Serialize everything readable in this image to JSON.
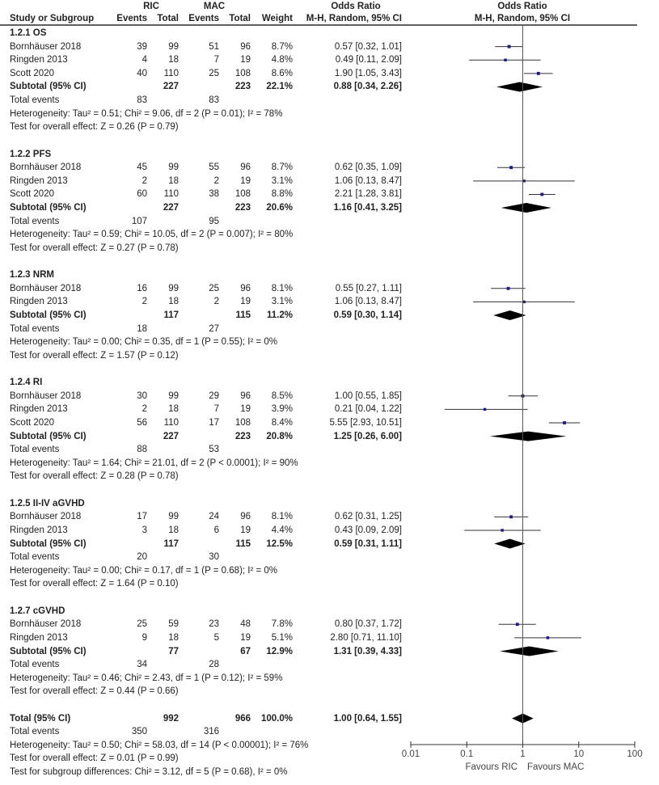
{
  "chart_data": {
    "type": "forest",
    "header": {
      "group1": "RIC",
      "group2": "MAC",
      "or_col": "Odds Ratio",
      "plot_col": "Odds Ratio",
      "study": "Study or Subgroup",
      "events": "Events",
      "total": "Total",
      "weight": "Weight",
      "method": "M-H, Random, 95% CI"
    },
    "x_axis": {
      "scale": "log",
      "range": [
        0.01,
        100
      ],
      "ticks": [
        "0.01",
        "0.1",
        "1",
        "10",
        "100"
      ],
      "label_left": "Favours RIC",
      "label_right": "Favours MAC"
    },
    "subgroups": [
      {
        "title": "1.2.1 OS",
        "studies": [
          {
            "name": "Bornhäuser 2018",
            "e1": "39",
            "n1": "99",
            "e2": "51",
            "n2": "96",
            "weight": "8.7%",
            "or": 0.57,
            "lo": 0.32,
            "hi": 1.01,
            "label": "0.57 [0.32, 1.01]"
          },
          {
            "name": "Ringden 2013",
            "e1": "4",
            "n1": "18",
            "e2": "7",
            "n2": "19",
            "weight": "4.8%",
            "or": 0.49,
            "lo": 0.11,
            "hi": 2.09,
            "label": "0.49 [0.11, 2.09]"
          },
          {
            "name": "Scott 2020",
            "e1": "40",
            "n1": "110",
            "e2": "25",
            "n2": "108",
            "weight": "8.6%",
            "or": 1.9,
            "lo": 1.05,
            "hi": 3.43,
            "label": "1.90 [1.05, 3.43]"
          }
        ],
        "subtotal": {
          "name": "Subtotal (95% CI)",
          "n1": "227",
          "n2": "223",
          "weight": "22.1%",
          "or": 0.88,
          "lo": 0.34,
          "hi": 2.26,
          "label": "0.88 [0.34, 2.26]"
        },
        "total_events": {
          "name": "Total events",
          "e1": "83",
          "e2": "83"
        },
        "heterogeneity": "Heterogeneity: Tau² = 0.51; Chi² = 9.06, df = 2 (P = 0.01); I² = 78%",
        "overall": "Test for overall effect: Z = 0.26 (P = 0.79)"
      },
      {
        "title": "1.2.2 PFS",
        "studies": [
          {
            "name": "Bornhäuser 2018",
            "e1": "45",
            "n1": "99",
            "e2": "55",
            "n2": "96",
            "weight": "8.7%",
            "or": 0.62,
            "lo": 0.35,
            "hi": 1.09,
            "label": "0.62 [0.35, 1.09]"
          },
          {
            "name": "Ringden 2013",
            "e1": "2",
            "n1": "18",
            "e2": "2",
            "n2": "19",
            "weight": "3.1%",
            "or": 1.06,
            "lo": 0.13,
            "hi": 8.47,
            "label": "1.06 [0.13, 8.47]"
          },
          {
            "name": "Scott 2020",
            "e1": "60",
            "n1": "110",
            "e2": "38",
            "n2": "108",
            "weight": "8.8%",
            "or": 2.21,
            "lo": 1.28,
            "hi": 3.81,
            "label": "2.21 [1.28, 3.81]"
          }
        ],
        "subtotal": {
          "name": "Subtotal (95% CI)",
          "n1": "227",
          "n2": "223",
          "weight": "20.6%",
          "or": 1.16,
          "lo": 0.41,
          "hi": 3.25,
          "label": "1.16 [0.41, 3.25]"
        },
        "total_events": {
          "name": "Total events",
          "e1": "107",
          "e2": "95"
        },
        "heterogeneity": "Heterogeneity: Tau² = 0.59; Chi² = 10.05, df = 2 (P = 0.007); I² = 80%",
        "overall": "Test for overall effect: Z = 0.27 (P = 0.78)"
      },
      {
        "title": "1.2.3 NRM",
        "studies": [
          {
            "name": "Bornhäuser 2018",
            "e1": "16",
            "n1": "99",
            "e2": "25",
            "n2": "96",
            "weight": "8.1%",
            "or": 0.55,
            "lo": 0.27,
            "hi": 1.11,
            "label": "0.55 [0.27, 1.11]"
          },
          {
            "name": "Ringden 2013",
            "e1": "2",
            "n1": "18",
            "e2": "2",
            "n2": "19",
            "weight": "3.1%",
            "or": 1.06,
            "lo": 0.13,
            "hi": 8.47,
            "label": "1.06 [0.13, 8.47]"
          }
        ],
        "subtotal": {
          "name": "Subtotal (95% CI)",
          "n1": "117",
          "n2": "115",
          "weight": "11.2%",
          "or": 0.59,
          "lo": 0.3,
          "hi": 1.14,
          "label": "0.59 [0.30, 1.14]"
        },
        "total_events": {
          "name": "Total events",
          "e1": "18",
          "e2": "27"
        },
        "heterogeneity": "Heterogeneity: Tau² = 0.00; Chi² = 0.35, df = 1 (P = 0.55); I² = 0%",
        "overall": "Test for overall effect: Z = 1.57 (P = 0.12)"
      },
      {
        "title": "1.2.4 RI",
        "studies": [
          {
            "name": "Bornhäuser 2018",
            "e1": "30",
            "n1": "99",
            "e2": "29",
            "n2": "96",
            "weight": "8.5%",
            "or": 1.0,
            "lo": 0.55,
            "hi": 1.85,
            "label": "1.00 [0.55, 1.85]"
          },
          {
            "name": "Ringden 2013",
            "e1": "2",
            "n1": "18",
            "e2": "7",
            "n2": "19",
            "weight": "3.9%",
            "or": 0.21,
            "lo": 0.04,
            "hi": 1.22,
            "label": "0.21 [0.04, 1.22]"
          },
          {
            "name": "Scott 2020",
            "e1": "56",
            "n1": "110",
            "e2": "17",
            "n2": "108",
            "weight": "8.4%",
            "or": 5.55,
            "lo": 2.93,
            "hi": 10.51,
            "label": "5.55 [2.93, 10.51]"
          }
        ],
        "subtotal": {
          "name": "Subtotal (95% CI)",
          "n1": "227",
          "n2": "223",
          "weight": "20.8%",
          "or": 1.25,
          "lo": 0.26,
          "hi": 6.0,
          "label": "1.25 [0.26, 6.00]"
        },
        "total_events": {
          "name": "Total events",
          "e1": "88",
          "e2": "53"
        },
        "heterogeneity": "Heterogeneity: Tau² = 1.64; Chi² = 21.01, df = 2 (P < 0.0001); I² = 90%",
        "overall": "Test for overall effect: Z = 0.28 (P = 0.78)"
      },
      {
        "title": "1.2.5 II-IV aGVHD",
        "studies": [
          {
            "name": "Bornhäuser 2018",
            "e1": "17",
            "n1": "99",
            "e2": "24",
            "n2": "96",
            "weight": "8.1%",
            "or": 0.62,
            "lo": 0.31,
            "hi": 1.25,
            "label": "0.62 [0.31, 1.25]"
          },
          {
            "name": "Ringden 2013",
            "e1": "3",
            "n1": "18",
            "e2": "6",
            "n2": "19",
            "weight": "4.4%",
            "or": 0.43,
            "lo": 0.09,
            "hi": 2.09,
            "label": "0.43 [0.09, 2.09]"
          }
        ],
        "subtotal": {
          "name": "Subtotal (95% CI)",
          "n1": "117",
          "n2": "115",
          "weight": "12.5%",
          "or": 0.59,
          "lo": 0.31,
          "hi": 1.11,
          "label": "0.59 [0.31, 1.11]"
        },
        "total_events": {
          "name": "Total events",
          "e1": "20",
          "e2": "30"
        },
        "heterogeneity": "Heterogeneity: Tau² = 0.00; Chi² = 0.17, df = 1 (P = 0.68); I² = 0%",
        "overall": "Test for overall effect: Z = 1.64 (P = 0.10)"
      },
      {
        "title": "1.2.7 cGVHD",
        "studies": [
          {
            "name": "Bornhäuser 2018",
            "e1": "25",
            "n1": "59",
            "e2": "23",
            "n2": "48",
            "weight": "7.8%",
            "or": 0.8,
            "lo": 0.37,
            "hi": 1.72,
            "label": "0.80 [0.37, 1.72]"
          },
          {
            "name": "Ringden 2013",
            "e1": "9",
            "n1": "18",
            "e2": "5",
            "n2": "19",
            "weight": "5.1%",
            "or": 2.8,
            "lo": 0.71,
            "hi": 11.1,
            "label": "2.80 [0.71, 11.10]"
          }
        ],
        "subtotal": {
          "name": "Subtotal (95% CI)",
          "n1": "77",
          "n2": "67",
          "weight": "12.9%",
          "or": 1.31,
          "lo": 0.39,
          "hi": 4.33,
          "label": "1.31 [0.39, 4.33]"
        },
        "total_events": {
          "name": "Total events",
          "e1": "34",
          "e2": "28"
        },
        "heterogeneity": "Heterogeneity: Tau² = 0.46; Chi² = 2.43, df = 1 (P = 0.12); I² = 59%",
        "overall": "Test for overall effect: Z = 0.44 (P = 0.66)"
      }
    ],
    "total": {
      "name": "Total (95% CI)",
      "n1": "992",
      "n2": "966",
      "weight": "100.0%",
      "or": 1.0,
      "lo": 0.64,
      "hi": 1.55,
      "label": "1.00 [0.64, 1.55]"
    },
    "total_events": {
      "name": "Total events",
      "e1": "350",
      "e2": "316"
    },
    "heterogeneity": "Heterogeneity: Tau² = 0.50; Chi² = 58.03, df = 14 (P < 0.00001); I² = 76%",
    "overall": "Test for overall effect: Z = 0.01 (P = 0.99)",
    "subgroup_diff": "Test for subgroup differences: Chi² = 3.12, df = 5 (P = 0.68), I² = 0%",
    "colors": {
      "square": "#1a1a8c",
      "line": "#000000",
      "text": "#222222"
    }
  }
}
